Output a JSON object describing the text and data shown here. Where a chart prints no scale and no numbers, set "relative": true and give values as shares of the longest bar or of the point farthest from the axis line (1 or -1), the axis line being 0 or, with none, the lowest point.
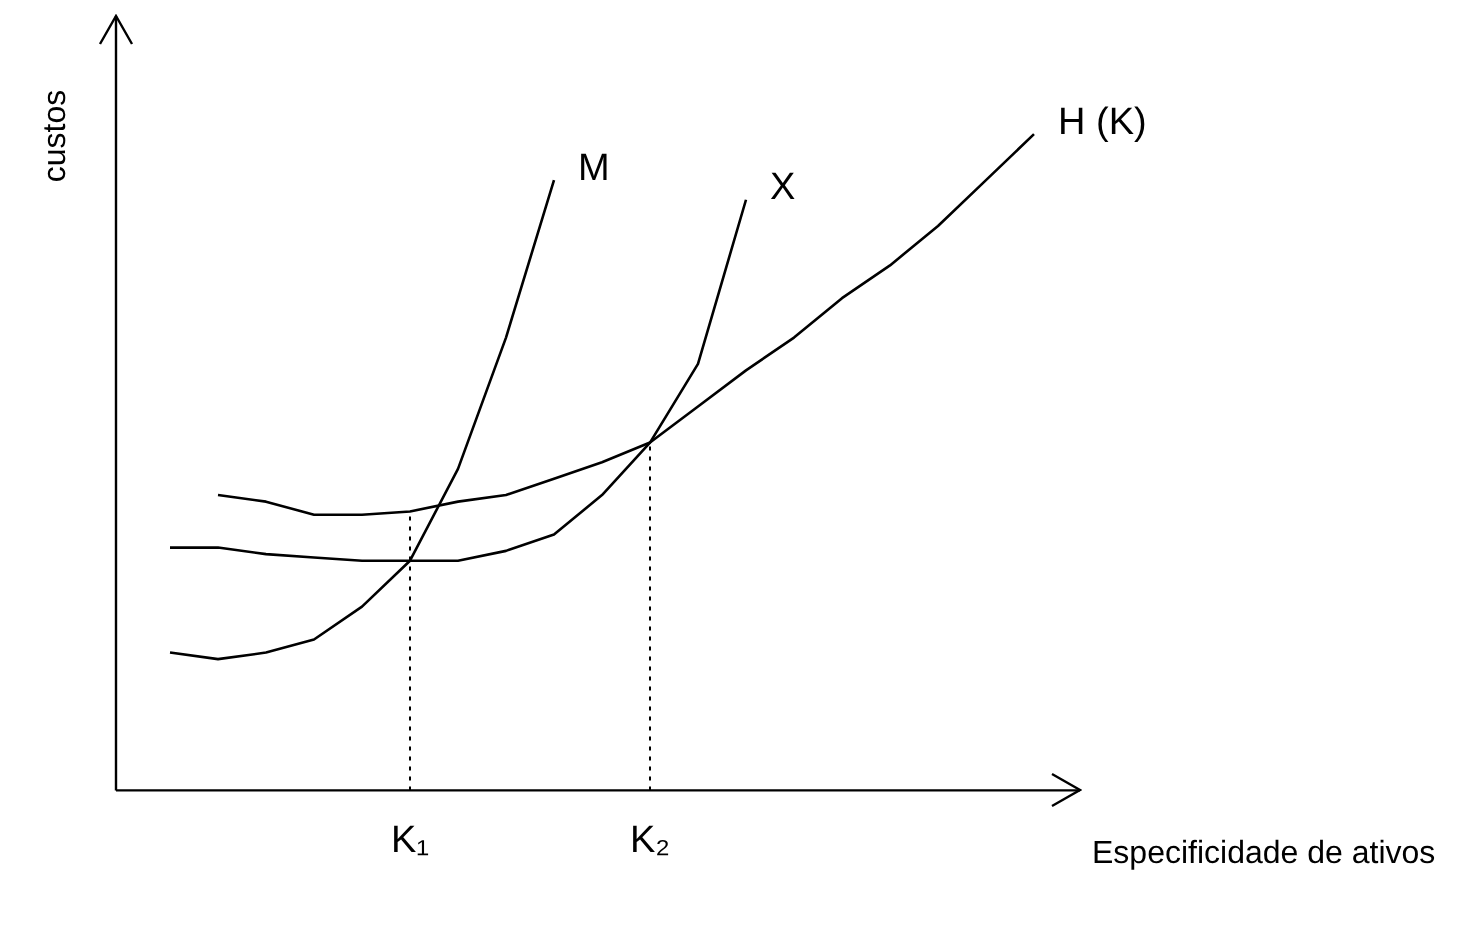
{
  "chart_data": {
    "type": "line",
    "relative": true,
    "xlabel": "Especificidade de ativos",
    "ylabel": "custos",
    "marker": "none",
    "line_style": "solid",
    "categories": [
      null,
      null,
      null,
      null,
      null,
      null,
      "K₁",
      null,
      null,
      null,
      null,
      "K₂",
      null,
      null,
      null,
      null,
      null,
      null,
      null,
      null
    ],
    "series": [
      {
        "name": "M",
        "color": "#000000",
        "values": [
          null,
          0.21,
          0.2,
          0.21,
          0.23,
          0.28,
          0.35,
          0.49,
          0.69,
          0.93,
          null,
          null,
          null,
          null,
          null,
          null,
          null,
          null,
          null,
          null
        ]
      },
      {
        "name": "X",
        "color": "#000000",
        "values": [
          null,
          0.37,
          0.37,
          0.36,
          0.355,
          0.35,
          0.35,
          0.35,
          0.365,
          0.39,
          0.45,
          0.53,
          0.65,
          0.9,
          null,
          null,
          null,
          null,
          null,
          null
        ]
      },
      {
        "name": "H (K)",
        "color": "#000000",
        "values": [
          null,
          null,
          0.45,
          0.44,
          0.42,
          0.42,
          0.425,
          0.44,
          0.45,
          0.475,
          0.5,
          0.53,
          0.585,
          0.64,
          0.69,
          0.75,
          0.8,
          0.86,
          0.93,
          1.0
        ]
      }
    ],
    "ref_lines": [
      {
        "axis": "x",
        "value": "K₁",
        "line_style": "dotted",
        "color": "#000000"
      },
      {
        "axis": "x",
        "value": "K₂",
        "line_style": "dotted",
        "color": "#000000"
      }
    ]
  }
}
